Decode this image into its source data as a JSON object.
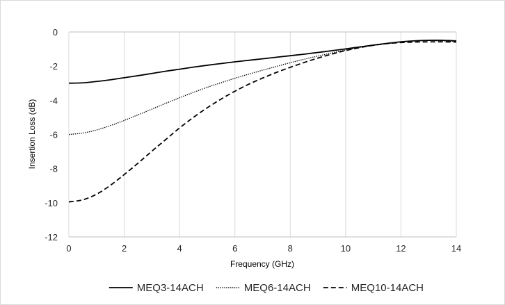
{
  "chart_data": {
    "type": "line",
    "title": "",
    "xlabel": "Frequency (GHz)",
    "ylabel": "Insertion Loss (dB)",
    "xlim": [
      0,
      14
    ],
    "ylim": [
      -12,
      0
    ],
    "x_ticks": [
      0,
      2,
      4,
      6,
      8,
      10,
      12,
      14
    ],
    "x_tick_labels": [
      "0",
      "2",
      "4",
      "6",
      "8",
      "10",
      "12",
      "14"
    ],
    "y_ticks": [
      0,
      -2,
      -4,
      -6,
      -8,
      -10,
      -12
    ],
    "y_tick_labels": [
      "0",
      "-2",
      "-4",
      "-6",
      "-8",
      "-10",
      "-12"
    ],
    "grid": "vertical",
    "legend_position": "bottom",
    "series": [
      {
        "name": "MEQ3-14ACH",
        "line_style": "solid",
        "color": "#000000",
        "x": [
          0,
          0.5,
          1,
          1.5,
          2,
          2.5,
          3,
          3.5,
          4,
          4.5,
          5,
          5.5,
          6,
          6.5,
          7,
          7.5,
          8,
          8.5,
          9,
          9.5,
          10,
          10.5,
          11,
          11.5,
          12,
          12.5,
          13,
          13.5,
          14
        ],
        "y": [
          -3.0,
          -2.98,
          -2.9,
          -2.8,
          -2.68,
          -2.56,
          -2.43,
          -2.3,
          -2.18,
          -2.06,
          -1.95,
          -1.85,
          -1.75,
          -1.66,
          -1.57,
          -1.48,
          -1.39,
          -1.3,
          -1.2,
          -1.1,
          -0.99,
          -0.88,
          -0.77,
          -0.67,
          -0.58,
          -0.52,
          -0.49,
          -0.49,
          -0.52
        ]
      },
      {
        "name": "MEQ6-14ACH",
        "line_style": "dotted",
        "color": "#000000",
        "x": [
          0,
          0.5,
          1,
          1.5,
          2,
          2.5,
          3,
          3.5,
          4,
          4.5,
          5,
          5.5,
          6,
          6.5,
          7,
          7.5,
          8,
          8.5,
          9,
          9.5,
          10,
          10.5,
          11,
          11.5,
          12,
          12.5,
          13,
          13.5,
          14
        ],
        "y": [
          -6.0,
          -5.92,
          -5.74,
          -5.48,
          -5.18,
          -4.85,
          -4.52,
          -4.18,
          -3.85,
          -3.54,
          -3.24,
          -2.97,
          -2.71,
          -2.47,
          -2.24,
          -2.02,
          -1.8,
          -1.6,
          -1.41,
          -1.23,
          -1.06,
          -0.91,
          -0.78,
          -0.66,
          -0.57,
          -0.52,
          -0.5,
          -0.52,
          -0.55
        ]
      },
      {
        "name": "MEQ10-14ACH",
        "line_style": "dashed",
        "color": "#000000",
        "x": [
          0,
          0.5,
          1,
          1.5,
          2,
          2.5,
          3,
          3.5,
          4,
          4.5,
          5,
          5.5,
          6,
          6.5,
          7,
          7.5,
          8,
          8.5,
          9,
          9.5,
          10,
          10.5,
          11,
          11.5,
          12,
          12.5,
          13,
          13.5,
          14
        ],
        "y": [
          -9.95,
          -9.83,
          -9.5,
          -8.98,
          -8.35,
          -7.68,
          -6.98,
          -6.3,
          -5.62,
          -5.0,
          -4.44,
          -3.93,
          -3.47,
          -3.06,
          -2.7,
          -2.37,
          -2.07,
          -1.79,
          -1.53,
          -1.3,
          -1.09,
          -0.92,
          -0.78,
          -0.68,
          -0.62,
          -0.59,
          -0.58,
          -0.58,
          -0.59
        ]
      }
    ]
  }
}
